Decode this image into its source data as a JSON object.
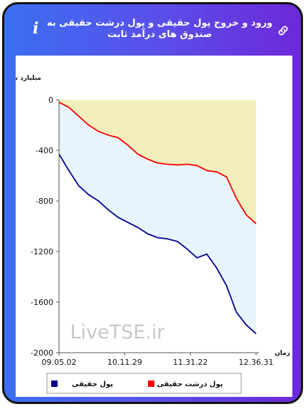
{
  "header": {
    "title": "ورود و خروج پول حقیقی و پول درشت حقیقی به صندوق های درآمد ثابت",
    "info_icon": "info-icon",
    "link_icon": "link-icon"
  },
  "chart_data": {
    "type": "area",
    "ylabel": "میلیارد تومان",
    "xlabel": "زمان",
    "ylim": [
      -2000,
      0
    ],
    "y_ticks": [
      0,
      -400,
      -800,
      -1200,
      -1600,
      -2000
    ],
    "x_ticks": [
      "09.05.02",
      "10.11.29",
      "11.31.22",
      "12.36.31"
    ],
    "watermark": "LiveTSE.ir",
    "x": [
      0,
      5,
      10,
      15,
      20,
      25,
      30,
      35,
      40,
      45,
      50,
      55,
      60,
      65,
      70,
      75,
      80,
      85,
      90,
      95,
      100
    ],
    "series": [
      {
        "name": "پول درشت حقیقی",
        "color": "#ff0000",
        "values": [
          -20,
          -60,
          -130,
          -200,
          -250,
          -280,
          -300,
          -360,
          -430,
          -470,
          -500,
          -510,
          -515,
          -510,
          -520,
          -560,
          -570,
          -610,
          -780,
          -910,
          -980
        ]
      },
      {
        "name": "پول حقیقی",
        "color": "#00008b",
        "values": [
          -430,
          -560,
          -680,
          -750,
          -800,
          -870,
          -930,
          -970,
          -1010,
          -1060,
          -1090,
          -1100,
          -1120,
          -1180,
          -1250,
          -1220,
          -1330,
          -1470,
          -1680,
          -1780,
          -1850
        ]
      }
    ],
    "fills": {
      "upper": "#f3eebe",
      "between": "#e8f4fb"
    },
    "legend": [
      {
        "label": "پول درشت حقیقی",
        "color": "#ff0000"
      },
      {
        "label": "پول حقیقی",
        "color": "#00008b"
      }
    ],
    "legend_placement": "bottom"
  }
}
